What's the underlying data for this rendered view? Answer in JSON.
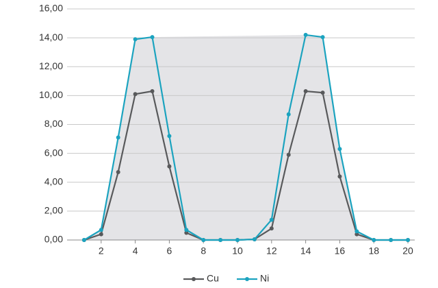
{
  "chart_data": {
    "type": "line",
    "x": [
      1,
      2,
      3,
      4,
      5,
      6,
      7,
      8,
      9,
      10,
      11,
      12,
      13,
      14,
      15,
      16,
      17,
      18,
      19,
      20
    ],
    "series": [
      {
        "name": "Cu",
        "color": "#58595b",
        "values": [
          0,
          0.4,
          4.7,
          10.1,
          10.3,
          5.1,
          0.5,
          0,
          0,
          0,
          0.05,
          0.8,
          5.9,
          10.3,
          10.2,
          4.4,
          0.4,
          0,
          0,
          0
        ]
      },
      {
        "name": "Ni",
        "color": "#1ba3bf",
        "values": [
          0,
          0.7,
          7.1,
          13.9,
          14.05,
          7.2,
          0.7,
          0,
          0,
          0,
          0.05,
          1.4,
          8.7,
          14.2,
          14.05,
          6.3,
          0.6,
          0,
          0,
          0
        ]
      }
    ],
    "xlim": [
      0,
      20.4
    ],
    "xticks": [
      2,
      4,
      6,
      8,
      10,
      12,
      14,
      16,
      18,
      20
    ],
    "ylim": [
      0,
      16
    ],
    "yticks": [
      {
        "value": 0,
        "label": "0,00"
      },
      {
        "value": 2,
        "label": "2,00"
      },
      {
        "value": 4,
        "label": "4,00"
      },
      {
        "value": 6,
        "label": "6,00"
      },
      {
        "value": 8,
        "label": "8,00"
      },
      {
        "value": 10,
        "label": "10,00"
      },
      {
        "value": 12,
        "label": "12,00"
      },
      {
        "value": 14,
        "label": "14,00"
      },
      {
        "value": 16,
        "label": "16,00"
      }
    ],
    "grid": true,
    "legend": "bottom"
  }
}
